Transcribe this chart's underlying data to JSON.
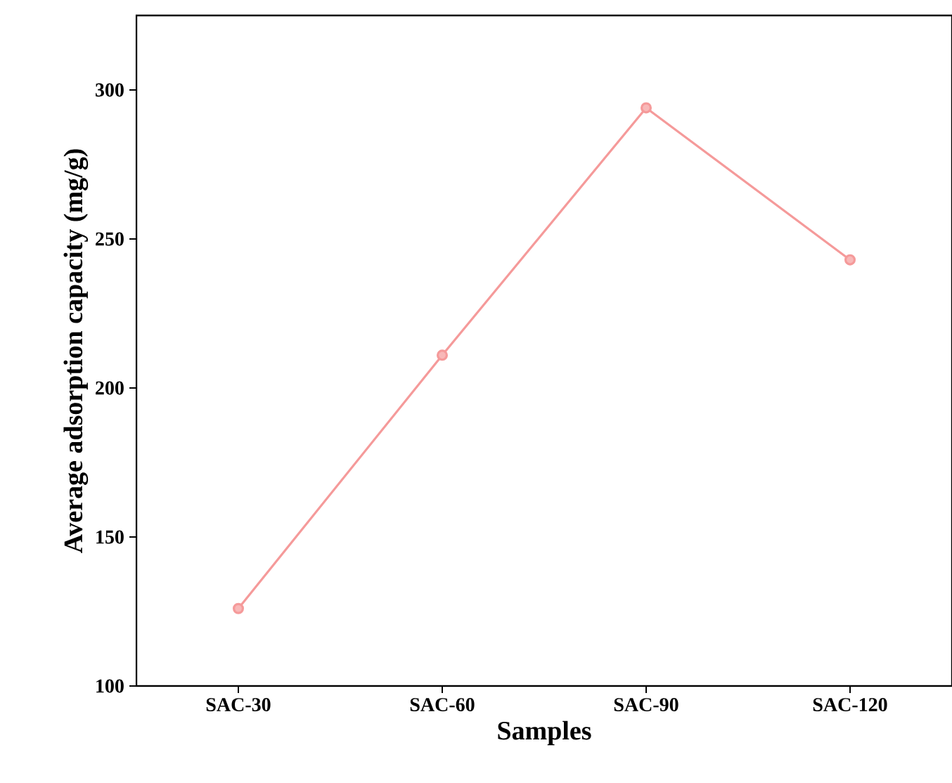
{
  "chart_data": {
    "type": "line",
    "xlabel": "Samples",
    "ylabel": "Average adsorption capacity (mg/g)",
    "categories": [
      "SAC-30",
      "SAC-60",
      "SAC-90",
      "SAC-120"
    ],
    "series": [
      {
        "color": "#f59a9a",
        "values": [
          126,
          211,
          294,
          243
        ]
      }
    ],
    "ylim": [
      100,
      325
    ],
    "yticks": [
      100,
      150,
      200,
      250,
      300
    ],
    "marker": "circle",
    "line_style": "solid",
    "grid": false
  }
}
